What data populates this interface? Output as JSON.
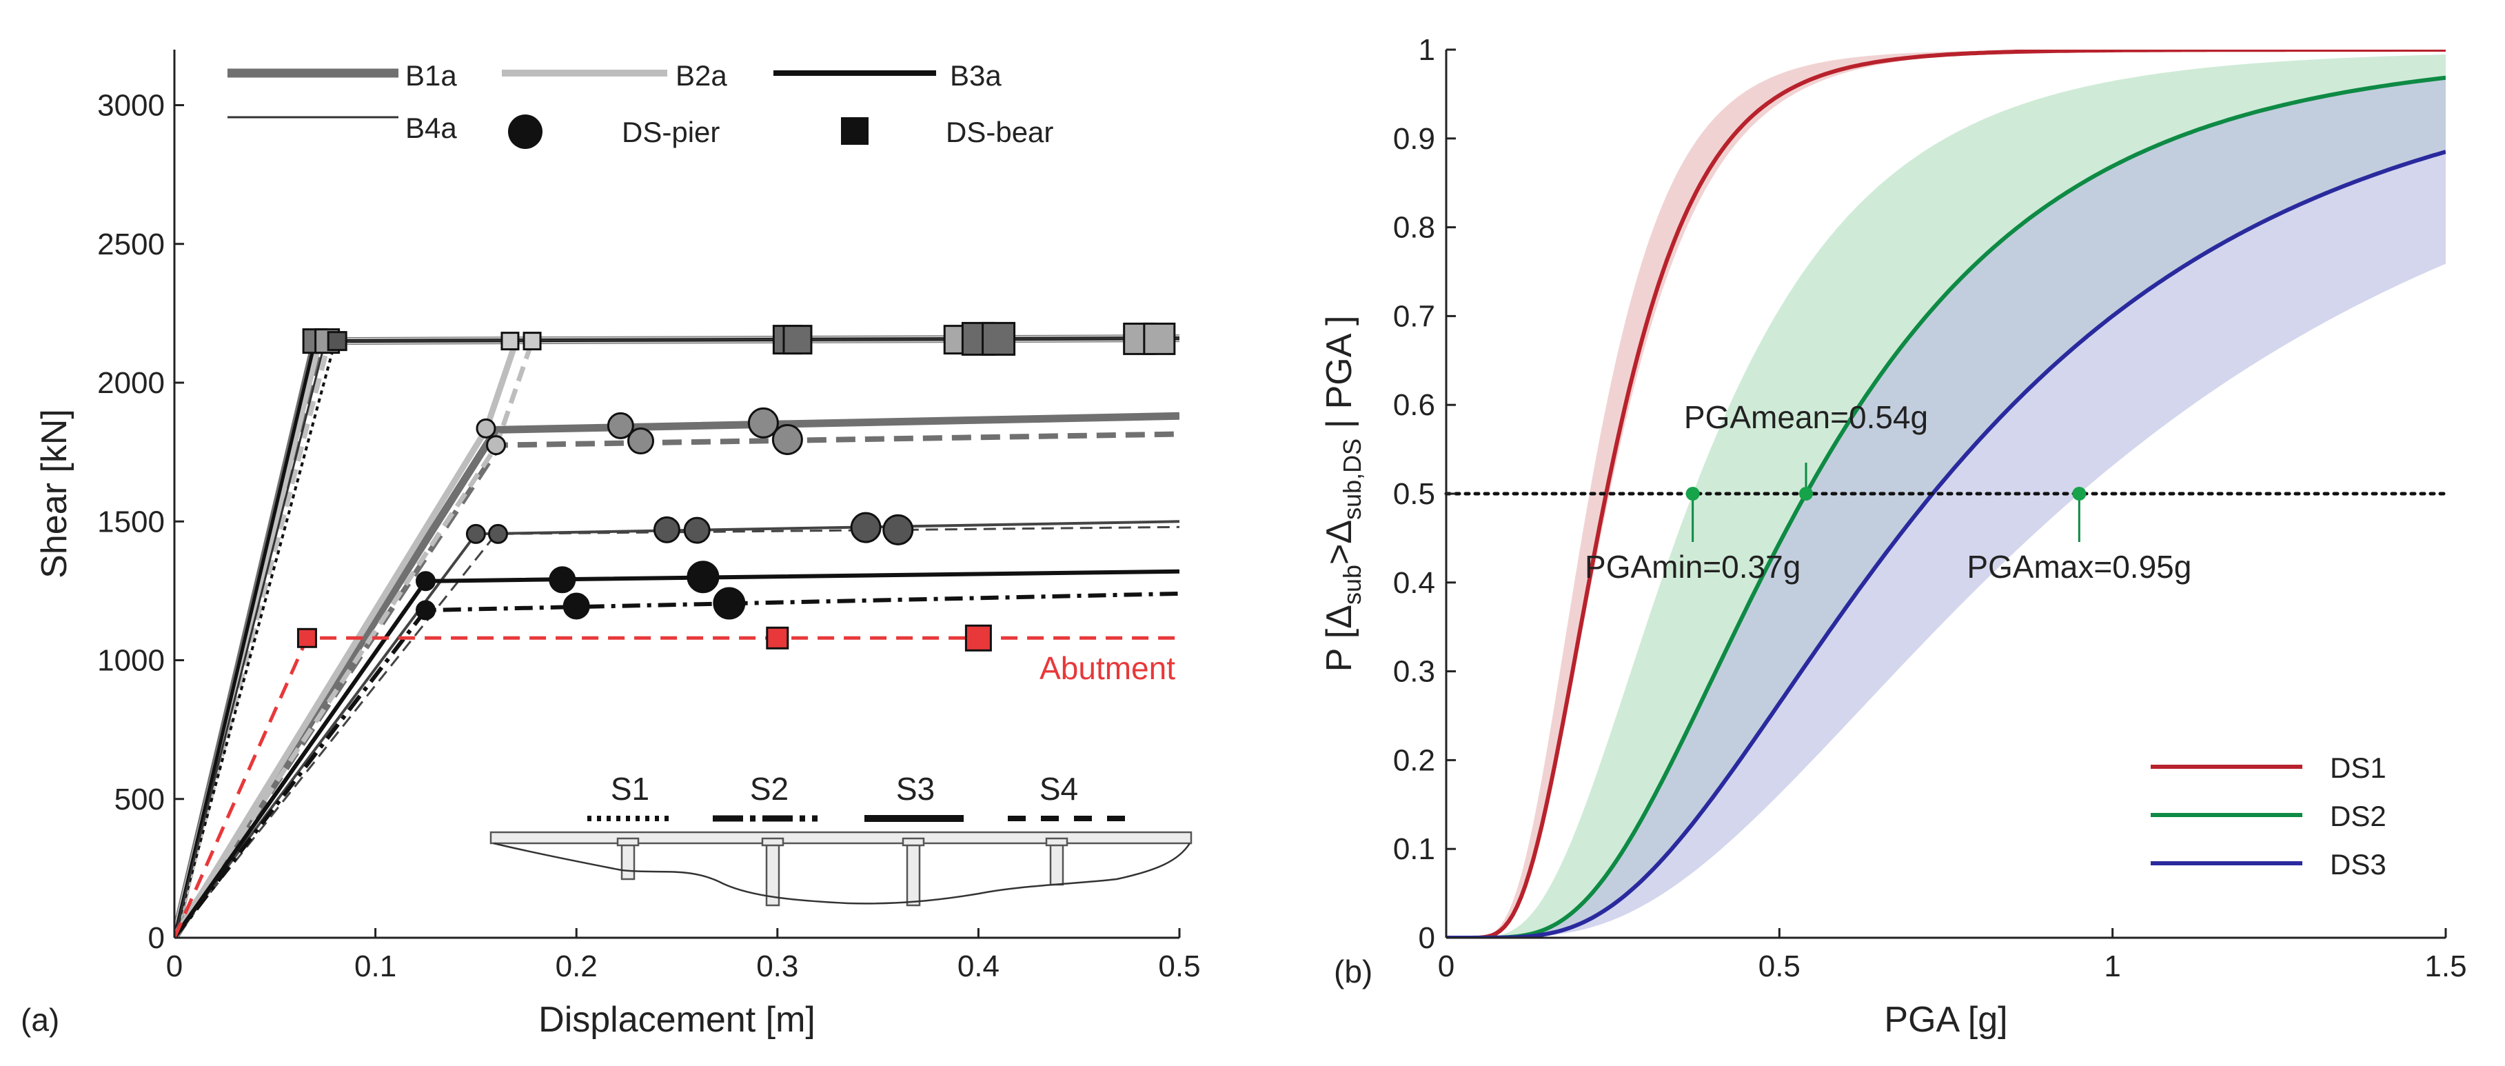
{
  "figure": {
    "panel_labels": [
      "(a)",
      "(b)"
    ]
  },
  "colors": {
    "axis": "#222222",
    "red": "#e8383a",
    "ds1": "#b8222c",
    "ds2": "#0e8a44",
    "ds3": "#2a2a9e",
    "ds1_band": "#e9b7b7",
    "ds2_band": "#b2dfbf",
    "ds3_band": "#b9bde2"
  },
  "chart_data": [
    {
      "type": "line",
      "panel": "(a)",
      "xlabel": "Displacement [m]",
      "ylabel": "Shear [kN]",
      "xlim": [
        0,
        0.5
      ],
      "ylim": [
        0,
        3200
      ],
      "xticks": [
        0,
        0.1,
        0.2,
        0.3,
        0.4,
        0.5
      ],
      "xtick_labels": [
        "0",
        "0.1",
        "0.2",
        "0.3",
        "0.4",
        "0.5"
      ],
      "yticks": [
        0,
        500,
        1000,
        1500,
        2000,
        2500,
        3000
      ],
      "ytick_labels": [
        "0",
        "500",
        "1000",
        "1500",
        "2000",
        "2500",
        "3000"
      ],
      "legend_position": "top",
      "legend": [
        {
          "label": "B1a",
          "kind": "line",
          "color": "#707070",
          "width": 12
        },
        {
          "label": "B2a",
          "kind": "line",
          "color": "#bdbdbd",
          "width": 9
        },
        {
          "label": "B3a",
          "kind": "line",
          "color": "#111111",
          "width": 8
        },
        {
          "label": "B4a",
          "kind": "line",
          "color": "#333333",
          "width": 3
        },
        {
          "label": "DS-pier",
          "kind": "circle",
          "color": "#111111"
        },
        {
          "label": "DS-bear",
          "kind": "square",
          "color": "#111111"
        }
      ],
      "series": [
        {
          "name": "B1a",
          "color": "#707070",
          "width": 11,
          "dash": "",
          "x": [
            0,
            0.07,
            0.5
          ],
          "y": [
            0,
            2150,
            2160
          ]
        },
        {
          "name": "B1a",
          "color": "#707070",
          "width": 8,
          "dash": "28 14",
          "x": [
            0,
            0.073,
            0.5
          ],
          "y": [
            0,
            2150,
            2160
          ]
        },
        {
          "name": "B2a",
          "color": "#c0c0c0",
          "width": 9,
          "dash": "",
          "x": [
            0,
            0.072,
            0.5
          ],
          "y": [
            0,
            2150,
            2160
          ]
        },
        {
          "name": "B2a",
          "color": "#c0c0c0",
          "width": 7,
          "dash": "22 12",
          "x": [
            0,
            0.077,
            0.5
          ],
          "y": [
            0,
            2150,
            2160
          ]
        },
        {
          "name": "B3a",
          "color": "#111111",
          "width": 5,
          "dash": "",
          "x": [
            0,
            0.07,
            0.5
          ],
          "y": [
            0,
            2150,
            2160
          ]
        },
        {
          "name": "B3a",
          "color": "#111111",
          "width": 4,
          "dash": "6 6",
          "x": [
            0,
            0.08,
            0.5
          ],
          "y": [
            0,
            2150,
            2160
          ]
        },
        {
          "name": "B4a",
          "color": "#333333",
          "width": 3,
          "dash": "",
          "x": [
            0,
            0.075,
            0.5
          ],
          "y": [
            0,
            2150,
            2160
          ]
        },
        {
          "name": "B1a",
          "color": "#707070",
          "width": 11,
          "dash": "",
          "x": [
            0,
            0.16,
            0.5
          ],
          "y": [
            0,
            1830,
            1880
          ]
        },
        {
          "name": "B1a",
          "color": "#707070",
          "width": 8,
          "dash": "28 14",
          "x": [
            0,
            0.162,
            0.5
          ],
          "y": [
            0,
            1775,
            1815
          ]
        },
        {
          "name": "B2a",
          "color": "#bdbdbd",
          "width": 9,
          "dash": "",
          "x": [
            0,
            0.155,
            0.17
          ],
          "y": [
            0,
            1830,
            2150
          ]
        },
        {
          "name": "B2a",
          "color": "#bdbdbd",
          "width": 7,
          "dash": "22 12",
          "x": [
            0,
            0.16,
            0.178
          ],
          "y": [
            0,
            1770,
            2150
          ]
        },
        {
          "name": "B4a",
          "color": "#444444",
          "width": 4,
          "dash": "",
          "x": [
            0,
            0.15,
            0.5
          ],
          "y": [
            0,
            1455,
            1500
          ]
        },
        {
          "name": "B4a",
          "color": "#444444",
          "width": 3,
          "dash": "18 10",
          "x": [
            0,
            0.16,
            0.5
          ],
          "y": [
            0,
            1455,
            1480
          ]
        },
        {
          "name": "B3a",
          "color": "#111111",
          "width": 6,
          "dash": "",
          "x": [
            0,
            0.125,
            0.5
          ],
          "y": [
            0,
            1285,
            1320
          ]
        },
        {
          "name": "B3a",
          "color": "#111111",
          "width": 6,
          "dash": "26 10 6 10",
          "x": [
            0,
            0.125,
            0.5
          ],
          "y": [
            0,
            1180,
            1240
          ]
        },
        {
          "name": "Abutment",
          "color": "#e8383a",
          "width": 5,
          "dash": "24 14",
          "x": [
            0,
            0.066,
            0.5
          ],
          "y": [
            0,
            1080,
            1080
          ]
        }
      ],
      "markers": [
        {
          "shape": "square",
          "x": 0.07,
          "y": 2150,
          "size": 34,
          "color": "#777777"
        },
        {
          "shape": "square",
          "x": 0.076,
          "y": 2150,
          "size": 34,
          "color": "#999999"
        },
        {
          "shape": "square",
          "x": 0.081,
          "y": 2150,
          "size": 26,
          "color": "#555555"
        },
        {
          "shape": "square",
          "x": 0.167,
          "y": 2150,
          "size": 24,
          "color": "#cccccc"
        },
        {
          "shape": "square",
          "x": 0.178,
          "y": 2150,
          "size": 24,
          "color": "#cccccc"
        },
        {
          "shape": "square",
          "x": 0.305,
          "y": 2155,
          "size": 40,
          "color": "#6a6a6a"
        },
        {
          "shape": "square",
          "x": 0.31,
          "y": 2155,
          "size": 40,
          "color": "#6a6a6a"
        },
        {
          "shape": "square",
          "x": 0.39,
          "y": 2155,
          "size": 40,
          "color": "#a8a8a8"
        },
        {
          "shape": "square",
          "x": 0.4,
          "y": 2158,
          "size": 46,
          "color": "#6a6a6a"
        },
        {
          "shape": "square",
          "x": 0.41,
          "y": 2158,
          "size": 46,
          "color": "#6a6a6a"
        },
        {
          "shape": "square",
          "x": 0.48,
          "y": 2158,
          "size": 44,
          "color": "#a8a8a8"
        },
        {
          "shape": "square",
          "x": 0.49,
          "y": 2158,
          "size": 44,
          "color": "#a8a8a8"
        },
        {
          "shape": "circle",
          "x": 0.155,
          "y": 1835,
          "size": 26,
          "color": "#bbbbbb"
        },
        {
          "shape": "circle",
          "x": 0.16,
          "y": 1775,
          "size": 26,
          "color": "#bbbbbb"
        },
        {
          "shape": "circle",
          "x": 0.222,
          "y": 1845,
          "size": 36,
          "color": "#8a8a8a"
        },
        {
          "shape": "circle",
          "x": 0.232,
          "y": 1790,
          "size": 36,
          "color": "#8a8a8a"
        },
        {
          "shape": "circle",
          "x": 0.293,
          "y": 1855,
          "size": 42,
          "color": "#8a8a8a"
        },
        {
          "shape": "circle",
          "x": 0.305,
          "y": 1795,
          "size": 42,
          "color": "#8a8a8a"
        },
        {
          "shape": "circle",
          "x": 0.15,
          "y": 1455,
          "size": 26,
          "color": "#555555"
        },
        {
          "shape": "circle",
          "x": 0.161,
          "y": 1455,
          "size": 26,
          "color": "#555555"
        },
        {
          "shape": "circle",
          "x": 0.245,
          "y": 1470,
          "size": 36,
          "color": "#555555"
        },
        {
          "shape": "circle",
          "x": 0.26,
          "y": 1468,
          "size": 36,
          "color": "#555555"
        },
        {
          "shape": "circle",
          "x": 0.344,
          "y": 1478,
          "size": 42,
          "color": "#555555"
        },
        {
          "shape": "circle",
          "x": 0.36,
          "y": 1470,
          "size": 42,
          "color": "#555555"
        },
        {
          "shape": "circle",
          "x": 0.125,
          "y": 1285,
          "size": 26,
          "color": "#111111"
        },
        {
          "shape": "circle",
          "x": 0.125,
          "y": 1180,
          "size": 26,
          "color": "#111111"
        },
        {
          "shape": "circle",
          "x": 0.193,
          "y": 1290,
          "size": 36,
          "color": "#111111"
        },
        {
          "shape": "circle",
          "x": 0.2,
          "y": 1195,
          "size": 36,
          "color": "#111111"
        },
        {
          "shape": "circle",
          "x": 0.263,
          "y": 1300,
          "size": 44,
          "color": "#111111"
        },
        {
          "shape": "circle",
          "x": 0.276,
          "y": 1205,
          "size": 44,
          "color": "#111111"
        },
        {
          "shape": "square",
          "x": 0.066,
          "y": 1080,
          "size": 26,
          "color": "#e8383a"
        },
        {
          "shape": "square",
          "x": 0.3,
          "y": 1080,
          "size": 30,
          "color": "#e8383a"
        },
        {
          "shape": "square",
          "x": 0.4,
          "y": 1080,
          "size": 36,
          "color": "#e8383a"
        }
      ],
      "annotations": [
        {
          "text": "Abutment",
          "color": "#e8383a"
        }
      ],
      "inset": {
        "labels": [
          "S1",
          "S2",
          "S3",
          "S4"
        ]
      }
    },
    {
      "type": "line",
      "panel": "(b)",
      "xlabel": "PGA [g]",
      "ylabel": "P [Δsub>Δsub,DS | PGA ]",
      "xlim": [
        0,
        1.5
      ],
      "ylim": [
        0,
        1
      ],
      "xticks": [
        0,
        0.5,
        1,
        1.5
      ],
      "xtick_labels": [
        "0",
        "0.5",
        "1",
        "1.5"
      ],
      "yticks": [
        0,
        0.1,
        0.2,
        0.3,
        0.4,
        0.5,
        0.6,
        0.7,
        0.8,
        0.9,
        1
      ],
      "ytick_labels": [
        "0",
        "0.1",
        "0.2",
        "0.3",
        "0.4",
        "0.5",
        "0.6",
        "0.7",
        "0.8",
        "0.9",
        "1"
      ],
      "legend_position": "bottom-right",
      "series": [
        {
          "name": "DS1",
          "color": "#b8222c",
          "median": 0.24,
          "beta": 0.45
        },
        {
          "name": "DS2",
          "color": "#0e8a44",
          "median": 0.54,
          "beta": 0.55
        },
        {
          "name": "DS3",
          "color": "#2a2a9e",
          "median": 0.73,
          "beta": 0.6
        }
      ],
      "bands": [
        {
          "name": "DS1",
          "color": "#e9b7b7",
          "lower": {
            "median": 0.245,
            "beta": 0.46
          },
          "upper": {
            "median": 0.215,
            "beta": 0.44
          }
        },
        {
          "name": "DS2",
          "color": "#b2dfbf",
          "lower": {
            "median": 0.73,
            "beta": 0.6
          },
          "upper": {
            "median": 0.37,
            "beta": 0.55
          }
        },
        {
          "name": "DS3",
          "color": "#b9bde2",
          "lower": {
            "median": 0.95,
            "beta": 0.65
          },
          "upper": {
            "median": 0.54,
            "beta": 0.55
          }
        }
      ],
      "reference_line": {
        "y": 0.5,
        "style": "dotted"
      },
      "points": [
        {
          "x": 0.37,
          "y": 0.5,
          "label": "PGAmin=0.37g",
          "label_pos": "below"
        },
        {
          "x": 0.54,
          "y": 0.5,
          "label": "PGAmean=0.54g",
          "label_pos": "above"
        },
        {
          "x": 0.95,
          "y": 0.5,
          "label": "PGAmax=0.95g",
          "label_pos": "below"
        }
      ]
    }
  ]
}
